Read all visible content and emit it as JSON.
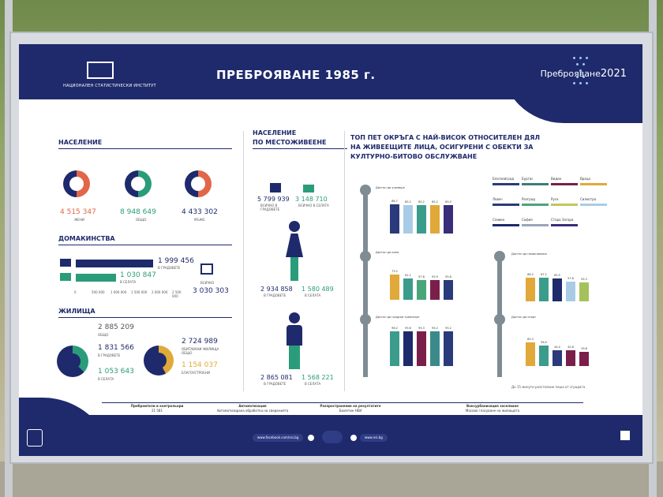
{
  "board": {
    "title": "ПРЕБРОЯВАНЕ 1985 г.",
    "institute": "НАЦИОНАЛЕН СТАТИСТИЧЕСКИ ИНСТИТУТ",
    "census_logo": "Преброяване",
    "census_year": "2021"
  },
  "population": {
    "heading": "НАСЕЛЕНИЕ",
    "women": {
      "value": "4 515 347",
      "label": "ЖЕНИ"
    },
    "total": {
      "value": "8 948 649",
      "label": "ОБЩО"
    },
    "men": {
      "value": "4 433 302",
      "label": "МЪЖЕ"
    }
  },
  "households": {
    "heading": "ДОМАКИНСТВА",
    "cities": {
      "value": "1 999 456",
      "label": "В ГРАДОВЕТЕ"
    },
    "villages": {
      "value": "1 030 847",
      "label": "В СЕЛАТА"
    },
    "total": {
      "value": "3 030 303",
      "label": "ВСИЧКО"
    },
    "axis": [
      "0",
      "500 000",
      "1 000 000",
      "1 500 000",
      "2 000 000",
      "2 500 000"
    ]
  },
  "dwellings": {
    "heading": "ЖИЛИЩА",
    "total": {
      "value": "2 885 209",
      "label": "ОБЩО"
    },
    "cities": {
      "value": "1 831 566",
      "label": "В ГРАДОВЕТЕ"
    },
    "villages": {
      "value": "1 053 643",
      "label": "В СЕЛАТА"
    },
    "inhabited": {
      "value": "2 724 989",
      "label": "ОБИТАВАНИ ЖИЛИЩА ОБЩО"
    },
    "amenities": {
      "value": "1 154 037",
      "label": "БЛАГОУСТРОЕНИ"
    }
  },
  "residence": {
    "heading_line1": "НАСЕЛЕНИЕ",
    "heading_line2": "ПО МЕСТОЖИВЕЕНЕ",
    "cities": {
      "value": "5 799 939",
      "label": "ВСИЧКО В ГРАДОВЕТЕ"
    },
    "villages": {
      "value": "3 148 710",
      "label": "ВСИЧКО В СЕЛАТА"
    },
    "women_cities": "2 934 858",
    "women_villages": "1 580 489",
    "men_cities": "2 865 081",
    "men_villages": "1 568 221",
    "label_cities": "В ГРАДОВЕТЕ",
    "label_villages": "В СЕЛАТА"
  },
  "top5": {
    "heading_line1": "ТОП ПЕТ ОКРЪГА С НАЙ-ВИСОК ОТНОСИТЕЛЕН ДЯЛ",
    "heading_line2": "НА ЖИВЕЕЩИТЕ ЛИЦА, ОСИГУРЕНИ С ОБЕКТИ ЗА",
    "heading_line3": "КУЛТУРНО-БИТОВО ОБСЛУЖВАНЕ",
    "footnote": "До 15 минути разстояние пеша от сградата"
  },
  "legend": [
    {
      "name": "Благоевград",
      "color": "#2a3a7a"
    },
    {
      "name": "Бургас",
      "color": "#3b7d7a"
    },
    {
      "name": "Видин",
      "color": "#7a1f4a"
    },
    {
      "name": "Враца",
      "color": "#e1a93a"
    },
    {
      "name": "Ловеч",
      "color": "#2a3a7a"
    },
    {
      "name": "Разград",
      "color": "#4aa57a"
    },
    {
      "name": "Русе",
      "color": "#c0c75a"
    },
    {
      "name": "Силистра",
      "color": "#a8cce6"
    },
    {
      "name": "Сливен",
      "color": "#1e2a6b"
    },
    {
      "name": "София",
      "color": "#9aa5b8"
    },
    {
      "name": "Стара Загора",
      "color": "#3a2d7a"
    }
  ],
  "chart_data": [
    {
      "type": "bar",
      "title": "Достъп до училище",
      "values": [
        86.7,
        85.2,
        85.2,
        85.2,
        85.0
      ],
      "colors": [
        "#2a3a7a",
        "#a8cce6",
        "#3b9c8c",
        "#e1a93a",
        "#3a2d7a"
      ]
    },
    {
      "type": "bar",
      "title": "Достъп до кино",
      "values": [
        73.2,
        61.1,
        57.8,
        55.9,
        55.8
      ],
      "colors": [
        "#e1a93a",
        "#3b9c8c",
        "#4aa57a",
        "#7a1f4a",
        "#2a3a7a"
      ]
    },
    {
      "type": "bar",
      "title": "Достъп до градски транспорт",
      "values": [
        96.2,
        95.6,
        95.3,
        95.2,
        95.2
      ],
      "colors": [
        "#3b9c8c",
        "#1e2a6b",
        "#7a1f4a",
        "#3a8a8c",
        "#2a3a7a"
      ]
    },
    {
      "type": "bar",
      "title": "Достъп до поликлиника",
      "values": [
        68.2,
        67.1,
        65.5,
        57.8,
        55.3
      ],
      "colors": [
        "#e1a93a",
        "#3b9c8c",
        "#1e2a6b",
        "#a8cce6",
        "#a5c25a"
      ]
    },
    {
      "type": "bar",
      "title": "Достъп до спорт",
      "values": [
        65.3,
        56.0,
        44.0,
        42.8,
        39.8
      ],
      "colors": [
        "#e1a93a",
        "#3b9c8c",
        "#2a3a7a",
        "#7a1f4a",
        "#7a1f4a"
      ]
    }
  ],
  "footer": {
    "col1_title": "Преброители и контрольори",
    "col1_value": "21 581",
    "col2_title": "Автоматизация",
    "col2_value": "Автоматизирана обработка на сведенията",
    "col3_title": "Разпространение на резултатите",
    "col3_value": "Бюлетин НЕИ",
    "col4_title": "Воксурбанизация заселване",
    "col4_value": "Масово гласуване на жилищата",
    "social1": "www.facebook.com/nsi.bg",
    "social2": "www.nsi.bg"
  }
}
